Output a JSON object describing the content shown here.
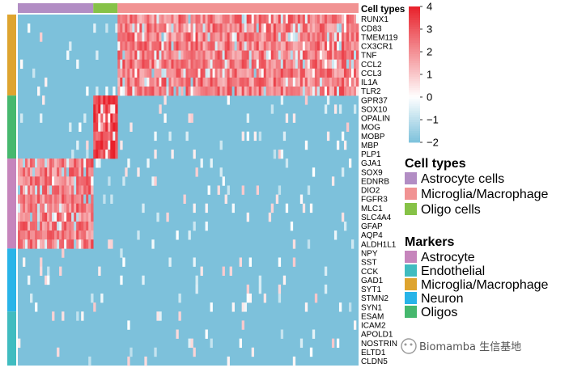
{
  "chart_data": {
    "type": "heatmap",
    "title": "Cell types",
    "value_range": [
      -2,
      4
    ],
    "colorbar": {
      "ticks": [
        4,
        3,
        2,
        1,
        0,
        -1,
        -2
      ],
      "colors": {
        "low": "#7dc1db",
        "mid": "#ffffff",
        "high": "#e8202a"
      }
    },
    "column_groups": [
      {
        "name": "Astrocyte cells",
        "fraction": 0.22,
        "color": "#b28dc4"
      },
      {
        "name": "Oligo cells",
        "fraction": 0.07,
        "color": "#86c247"
      },
      {
        "name": "Microglia/Macrophage",
        "fraction": 0.71,
        "color": "#f19393"
      }
    ],
    "row_groups": [
      {
        "name": "Microglia/Macrophage",
        "color": "#dea42f",
        "genes": [
          "RUNX1",
          "CD83",
          "TMEM119",
          "CX3CR1",
          "TNF",
          "CCL2",
          "CCL3",
          "IL1A",
          "TLR2"
        ]
      },
      {
        "name": "Oligos",
        "color": "#46b86e",
        "genes": [
          "GPR37",
          "SOX10",
          "OPALIN",
          "MOG",
          "MOBP",
          "MBP",
          "PLP1"
        ]
      },
      {
        "name": "Astrocyte",
        "color": "#c685bc",
        "genes": [
          "GJA1",
          "SOX9",
          "EDNRB",
          "DIO2",
          "FGFR3",
          "MLC1",
          "SLC4A4",
          "GFAP",
          "AQP4",
          "ALDH1L1"
        ]
      },
      {
        "name": "Neuron",
        "color": "#28b4e8",
        "genes": [
          "NPY",
          "SST",
          "CCK",
          "GAD1",
          "SYT1",
          "STMN2",
          "SYN1"
        ]
      },
      {
        "name": "Endothelial",
        "color": "#40bcc0",
        "genes": [
          "ESAM",
          "ICAM2",
          "APOLD1",
          "NOSTRIN",
          "ELTD1",
          "CLDN5"
        ]
      }
    ],
    "legends": {
      "cell_types": {
        "title": "Cell types",
        "items": [
          {
            "label": "Astrocyte cells",
            "color": "#b28dc4"
          },
          {
            "label": "Microglia/Macrophage",
            "color": "#f19393"
          },
          {
            "label": "Oligo cells",
            "color": "#86c247"
          }
        ]
      },
      "markers": {
        "title": "Markers",
        "items": [
          {
            "label": "Astrocyte",
            "color": "#c685bc"
          },
          {
            "label": "Endothelial",
            "color": "#40bcc0"
          },
          {
            "label": "Microglia/Macrophage",
            "color": "#dea42f"
          },
          {
            "label": "Neuron",
            "color": "#28b4e8"
          },
          {
            "label": "Oligos",
            "color": "#46b86e"
          }
        ]
      }
    }
  },
  "watermark": "Biomamba 生信基地"
}
